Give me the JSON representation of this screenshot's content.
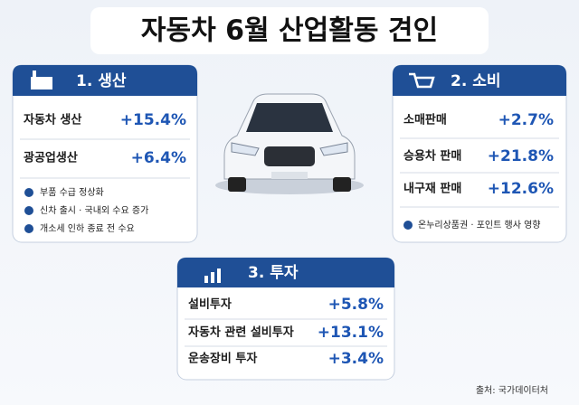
{
  "title": "자동차 6월 산업활동 견인",
  "panels": [
    {
      "header": "1. 생산",
      "rows": [
        {
          "label": "자동차 생산",
          "value": "+15.4%"
        },
        {
          "label": "광공업생산",
          "value": "+6.4%"
        }
      ],
      "notes": [
        "부품 수급 정상화",
        "신차 출시 · 국내외 수요 증가",
        "개소세 인하 종료 전 수요"
      ]
    },
    {
      "header": "2. 소비",
      "rows": [
        {
          "label": "소매판매",
          "value": "+2.7%"
        },
        {
          "label": "승용차 판매",
          "value": "+21.8%"
        },
        {
          "label": "내구재 판매",
          "value": "+12.6%"
        }
      ],
      "notes": [
        "온누리상품권 · 포인트 행사 영향"
      ]
    },
    {
      "header": "3. 투자",
      "rows": [
        {
          "label": "설비투자",
          "value": "+5.8%"
        },
        {
          "label": "자동차 관련 설비투자",
          "value": "+13.1%"
        },
        {
          "label": "운송장비 투자",
          "value": "+3.4%"
        }
      ],
      "notes": []
    }
  ],
  "source": "출처: 국가데이터처"
}
